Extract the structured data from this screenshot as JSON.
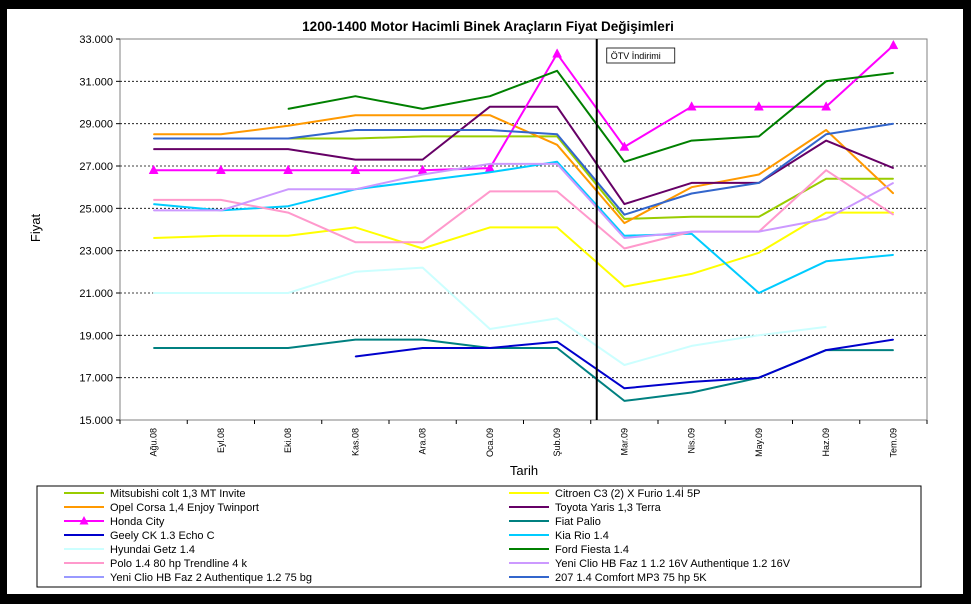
{
  "chart_data": {
    "type": "line",
    "title": "1200-1400 Motor Hacimli Binek Araçların Fiyat Değişimleri",
    "xlabel": "Tarih",
    "ylabel": "Fiyat",
    "ylim": [
      15000,
      33000
    ],
    "yticks": [
      "15.000",
      "17.000",
      "19.000",
      "21.000",
      "23.000",
      "25.000",
      "27.000",
      "29.000",
      "31.000",
      "33.000"
    ],
    "ytick_values": [
      15000,
      17000,
      19000,
      21000,
      23000,
      25000,
      27000,
      29000,
      31000,
      33000
    ],
    "categories": [
      "Ağu.08",
      "Eyl.08",
      "Eki.08",
      "Kas.08",
      "Ara.08",
      "Oca.09",
      "Şub.09",
      "Mar.09",
      "Nis.09",
      "May.09",
      "Haz.09",
      "Tem.09"
    ],
    "grid": "horizontal dashed",
    "annotation": {
      "text": "ÖTV İndirimi",
      "at_category": "Mar.09"
    },
    "legend_position": "bottom",
    "series": [
      {
        "name": "Mitsubishi colt 1,3 MT Invite",
        "color": "#99cc00",
        "marker": "none",
        "values": [
          28300,
          28300,
          28300,
          28300,
          28400,
          28400,
          28400,
          24500,
          24600,
          24600,
          26400,
          26400
        ]
      },
      {
        "name": "Citroen C3 (2) X Furio 1.4İ 5P",
        "color": "#ffff00",
        "marker": "none",
        "values": [
          23600,
          23700,
          23700,
          24100,
          23100,
          24100,
          24100,
          21300,
          21900,
          22900,
          24800,
          24800
        ]
      },
      {
        "name": "Opel Corsa 1,4  Enjoy Twinport",
        "color": "#ff9900",
        "marker": "none",
        "values": [
          28500,
          28500,
          28900,
          29400,
          29400,
          29400,
          28000,
          24300,
          26000,
          26600,
          28700,
          25700
        ]
      },
      {
        "name": "Toyota Yaris 1,3 Terra",
        "color": "#660066",
        "marker": "none",
        "values": [
          27800,
          27800,
          27800,
          27300,
          27300,
          29800,
          29800,
          25200,
          26200,
          26200,
          28200,
          26900
        ]
      },
      {
        "name": "Honda City",
        "color": "#ff00ff",
        "marker": "triangle",
        "values": [
          26800,
          26800,
          26800,
          26800,
          26800,
          26900,
          32300,
          27900,
          29800,
          29800,
          29800,
          32700
        ]
      },
      {
        "name": "Fiat Palio",
        "color": "#008080",
        "marker": "none",
        "values": [
          18400,
          18400,
          18400,
          18800,
          18800,
          18400,
          18400,
          15900,
          16300,
          17000,
          18300,
          18300
        ]
      },
      {
        "name": "Geely CK 1.3 Echo C",
        "color": "#0000cc",
        "marker": "none",
        "values": [
          null,
          null,
          null,
          18000,
          18400,
          18400,
          18700,
          16500,
          16800,
          17000,
          18300,
          18800
        ]
      },
      {
        "name": "Kia Rio 1.4",
        "color": "#00ccff",
        "marker": "none",
        "values": [
          25200,
          24900,
          25100,
          25900,
          26300,
          26700,
          27200,
          23700,
          23800,
          21000,
          22500,
          22800
        ]
      },
      {
        "name": "Hyundai Getz 1.4",
        "color": "#ccffff",
        "marker": "none",
        "values": [
          21000,
          21000,
          21000,
          22000,
          22200,
          19300,
          19800,
          17600,
          18500,
          19000,
          19400,
          null
        ]
      },
      {
        "name": "Ford Fiesta 1.4",
        "color": "#008000",
        "marker": "none",
        "values": [
          null,
          null,
          29700,
          30300,
          29700,
          30300,
          31500,
          27200,
          28200,
          28400,
          31000,
          31400
        ]
      },
      {
        "name": "Polo 1.4 80 hp Trendline 4 k",
        "color": "#ff99cc",
        "marker": "none",
        "values": [
          25400,
          25400,
          24800,
          23400,
          23400,
          25800,
          25800,
          23100,
          23900,
          23900,
          26800,
          24700
        ]
      },
      {
        "name": "Yeni Clio HB Faz 1 1.2 16V Authentique 1.2 16V",
        "color": "#cc99ff",
        "marker": "none",
        "values": [
          24900,
          24900,
          25900,
          25900,
          26600,
          27100,
          27100,
          23600,
          23900,
          23900,
          24500,
          26200
        ]
      },
      {
        "name": "Yeni Clio HB Faz 2 Authentique 1.2 75 bg",
        "color": "#9999ff",
        "marker": "none",
        "values": [
          null,
          null,
          null,
          null,
          null,
          null,
          null,
          null,
          null,
          null,
          null,
          null
        ]
      },
      {
        "name": "207 1.4 Comfort MP3 75 hp 5K",
        "color": "#3366cc",
        "marker": "none",
        "values": [
          28300,
          28300,
          28300,
          28700,
          28700,
          28700,
          28500,
          24700,
          25700,
          26200,
          28500,
          29000
        ]
      }
    ]
  }
}
